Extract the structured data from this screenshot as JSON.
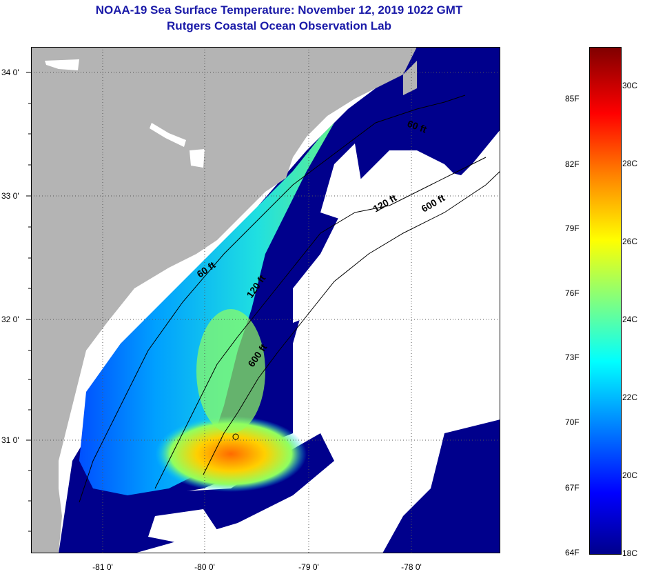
{
  "title": {
    "line1": "NOAA-19 Sea Surface Temperature:  November 12, 2019 1022 GMT",
    "line2": "Rutgers Coastal Ocean Observation Lab"
  },
  "map": {
    "lat_labels": [
      "34 0'",
      "33 0'",
      "32 0'",
      "31 0'"
    ],
    "lon_labels": [
      "-81 0'",
      "-80 0'",
      "-79 0'",
      "-78 0'"
    ],
    "contour_labels": [
      "60 ft",
      "120 ft",
      "600 ft",
      "60 ft",
      "120 ft",
      "600 ft"
    ],
    "colors": {
      "land": "#b4b4b4",
      "cloud": "#ffffff",
      "cold_water": "#00008c"
    }
  },
  "colorbar": {
    "fahrenheit_labels": [
      "85F",
      "82F",
      "79F",
      "76F",
      "73F",
      "70F",
      "67F",
      "64F"
    ],
    "celsius_labels": [
      "30C",
      "28C",
      "26C",
      "24C",
      "22C",
      "20C",
      "18C"
    ],
    "colors": [
      "#00008c",
      "#0000ff",
      "#0080ff",
      "#00ffff",
      "#80ff80",
      "#ffff00",
      "#ff8000",
      "#ff0000",
      "#800000"
    ]
  }
}
